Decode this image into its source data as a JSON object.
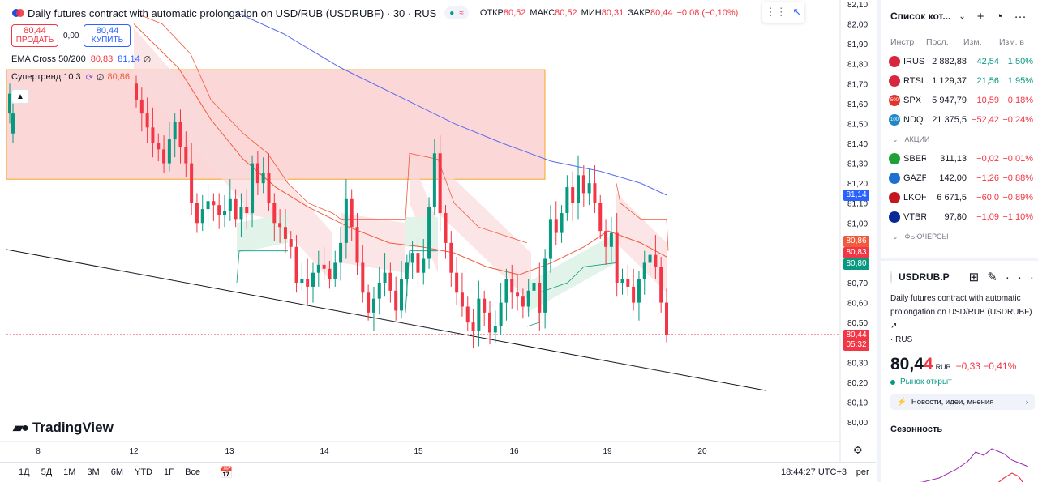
{
  "header": {
    "symbol_title": "Daily futures contract with automatic prolongation on USD/RUB (USDRUBF) · 30 · RUS",
    "mode_tag": "≈",
    "ohlc": [
      {
        "k": "ОТКР",
        "v": "80,52"
      },
      {
        "k": "МАКС",
        "v": "80,52"
      },
      {
        "k": "МИН",
        "v": "80,31"
      },
      {
        "k": "ЗАКР",
        "v": "80,44"
      },
      {
        "k": "",
        "v": "−0,08 (−0,10%)"
      }
    ]
  },
  "trade": {
    "sell_price": "80,44",
    "sell_label": "ПРОДАТЬ",
    "spread": "0,00",
    "buy_price": "80,44",
    "buy_label": "КУПИТЬ"
  },
  "indicators": {
    "ema": {
      "name": "EMA Cross 50/200",
      "v1": "80,83",
      "v2": "81,14",
      "tail": "∅"
    },
    "supertrend": {
      "name": "Супертренд 10 3",
      "value": "80,86"
    }
  },
  "chart_data": {
    "type": "candlestick",
    "price_axis": [
      "82,10",
      "82,00",
      "81,90",
      "81,80",
      "81,70",
      "81,60",
      "81,50",
      "81,40",
      "81,30",
      "81,20",
      "81,10",
      "81,00",
      "80,90",
      "80,80",
      "80,70",
      "80,60",
      "80,50",
      "80,40",
      "80,30",
      "80,20",
      "80,10",
      "80,00"
    ],
    "ylim": [
      79.98,
      82.1
    ],
    "date_axis": [
      "8",
      "12",
      "13",
      "14",
      "15",
      "16",
      "19",
      "20"
    ],
    "badges": {
      "ema200": "81,14",
      "supertrend": "80,86",
      "ema50": "80,83",
      "ema_cross": "80,80",
      "last": "80,44",
      "countdown": "05:32"
    },
    "colors": {
      "up": "#089981",
      "down": "#f23645",
      "ema200": "#5b6bf0",
      "ema50": "#f15a3a",
      "trend_down_fill": "#fadadb",
      "trend_up_fill": "#dff3e8",
      "zone_fill": "#f9c9cb",
      "zone_border": "#f5a623"
    },
    "closes": [
      81.62,
      81.55,
      81.48,
      81.4,
      81.37,
      81.3,
      81.42,
      81.51,
      81.38,
      81.3,
      81.1,
      81.0,
      81.07,
      81.11,
      81.09,
      81.04,
      81.06,
      81.12,
      81.02,
      81.08,
      81.05,
      81.3,
      81.2,
      81.25,
      81.1,
      81.0,
      80.98,
      80.92,
      80.88,
      80.7,
      80.72,
      80.68,
      80.75,
      80.79,
      80.77,
      80.72,
      80.8,
      80.9,
      81.12,
      80.98,
      80.8,
      80.65,
      80.55,
      80.62,
      80.7,
      80.75,
      80.66,
      80.56,
      80.72,
      80.8,
      80.85,
      80.75,
      80.82,
      81.08,
      81.35,
      81.05,
      80.9,
      80.75,
      80.65,
      80.58,
      80.5,
      80.46,
      80.62,
      80.55,
      80.45,
      80.48,
      80.6,
      80.72,
      80.65,
      80.63,
      80.58,
      80.66,
      80.7,
      80.55,
      80.82,
      81.02,
      80.95,
      81.05,
      81.18,
      81.1,
      81.24,
      81.15,
      81.2,
      81.1,
      80.96,
      80.88,
      80.95,
      80.7,
      80.72,
      80.68,
      80.6,
      80.72,
      80.8,
      80.84,
      80.78,
      80.6,
      80.44
    ]
  },
  "branding": {
    "logo": "TradingView"
  },
  "bottom": {
    "ranges": [
      "1Д",
      "5Д",
      "1М",
      "3М",
      "6М",
      "YTD",
      "1Г",
      "Все"
    ],
    "clock": "18:44:27 UTC+3",
    "scale": "рег"
  },
  "watchlist": {
    "title": "Список кот...",
    "columns": [
      "Инстр",
      "Посл.",
      "Изм.",
      "Изм. в"
    ],
    "groups": [
      {
        "label": "",
        "items": [
          {
            "sym": "IRUS",
            "last": "2 882,88",
            "chg": "42,54",
            "chgp": "1,50%",
            "dir": "pos",
            "icon_color": "#d7263d"
          },
          {
            "sym": "RTSI",
            "last": "1 129,37",
            "chg": "21,56",
            "chgp": "1,95%",
            "dir": "pos",
            "icon_color": "#d7263d"
          },
          {
            "sym": "SPX",
            "last": "5 947,79",
            "chg": "−10,59",
            "chgp": "−0,18%",
            "dir": "neg",
            "icon_color": "#e5332a",
            "icon_text": "500"
          },
          {
            "sym": "NDQ",
            "last": "21 375,5",
            "chg": "−52,42",
            "chgp": "−0,24%",
            "dir": "neg",
            "icon_color": "#1e88c8",
            "icon_text": "100"
          }
        ]
      },
      {
        "label": "АКЦИИ",
        "items": [
          {
            "sym": "SBER",
            "last": "311,13",
            "chg": "−0,02",
            "chgp": "−0,01%",
            "dir": "neg",
            "icon_color": "#21a038"
          },
          {
            "sym": "GAZP",
            "last": "142,00",
            "chg": "−1,26",
            "chgp": "−0,88%",
            "dir": "neg",
            "icon_color": "#1f6fd1"
          },
          {
            "sym": "LKOH",
            "last": "6 671,5",
            "chg": "−60,0",
            "chgp": "−0,89%",
            "dir": "neg",
            "icon_color": "#c4161c"
          },
          {
            "sym": "VTBR",
            "last": "97,80",
            "chg": "−1,09",
            "chgp": "−1,10%",
            "dir": "neg",
            "icon_color": "#0a2896"
          }
        ]
      },
      {
        "label": "ФЬЮЧЕРСЫ",
        "items": []
      }
    ]
  },
  "details": {
    "symbol": "USDRUB.P",
    "description": "Daily futures contract with automatic prolongation on USD/RUB (USDRUBF)",
    "exchange": "· RUS",
    "price_main": "80,4",
    "price_last_digit": "4",
    "currency": "RUB",
    "change": "−0,33  −0,41%",
    "status": "Рынок открыт",
    "news": "Новости, идеи, мнения",
    "seasonality": "Сезонность"
  }
}
